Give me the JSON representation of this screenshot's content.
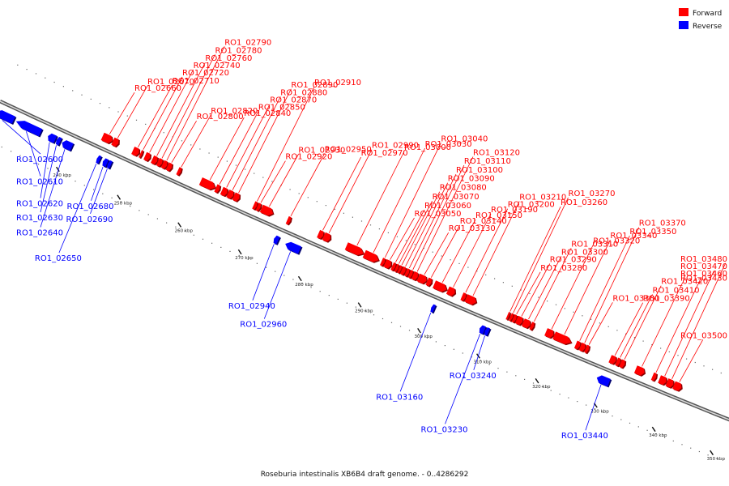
{
  "caption": "Roseburia intestinalis XB6B4 draft genome. - 0..4286292",
  "legend": {
    "forward": {
      "label": "Forward",
      "color": "#ff0000"
    },
    "reverse": {
      "label": "Reverse",
      "color": "#0000ff"
    }
  },
  "chart_data": {
    "type": "genome_map",
    "range_kbp": [
      228,
      352
    ],
    "ticks_kbp": [
      240,
      250,
      260,
      270,
      280,
      290,
      300,
      310,
      320,
      330,
      340,
      350
    ],
    "tick_label_suffix": " kbp",
    "genes": [
      {
        "name": "RO1_02600",
        "strand": "reverse",
        "start": 228.0,
        "end": 231.0
      },
      {
        "name": "RO1_02610",
        "strand": "reverse",
        "start": 231.4,
        "end": 235.4
      },
      {
        "name": "RO1_02620",
        "strand": "reverse",
        "start": 236.6,
        "end": 237.8
      },
      {
        "name": "RO1_02630",
        "strand": "reverse",
        "start": 238.0,
        "end": 238.6
      },
      {
        "name": "RO1_02640",
        "strand": "reverse",
        "start": 238.9,
        "end": 240.5
      },
      {
        "name": "RO1_02650",
        "strand": "reverse",
        "start": 244.6,
        "end": 245.1
      },
      {
        "name": "RO1_02660",
        "strand": "forward",
        "start": 244.0,
        "end": 245.6
      },
      {
        "name": "RO1_02670",
        "strand": "forward",
        "start": 245.7,
        "end": 246.6
      },
      {
        "name": "RO1_02680",
        "strand": "reverse",
        "start": 245.6,
        "end": 246.3
      },
      {
        "name": "RO1_02690",
        "strand": "reverse",
        "start": 246.4,
        "end": 246.9
      },
      {
        "name": "RO1_02710",
        "strand": "forward",
        "start": 249.0,
        "end": 250.0
      },
      {
        "name": "RO1_02720",
        "strand": "forward",
        "start": 250.2,
        "end": 250.5
      },
      {
        "name": "RO1_02740",
        "strand": "forward",
        "start": 251.0,
        "end": 251.8
      },
      {
        "name": "RO1_02760",
        "strand": "forward",
        "start": 252.2,
        "end": 253.0
      },
      {
        "name": "RO1_02780",
        "strand": "forward",
        "start": 253.1,
        "end": 253.8
      },
      {
        "name": "RO1_02790",
        "strand": "forward",
        "start": 253.9,
        "end": 254.6
      },
      {
        "name": "RO1_02800",
        "strand": "forward",
        "start": 254.7,
        "end": 255.4
      },
      {
        "name": "RO1_02820",
        "strand": "forward",
        "start": 256.4,
        "end": 256.9
      },
      {
        "name": "RO1_02840",
        "strand": "forward",
        "start": 260.2,
        "end": 262.6
      },
      {
        "name": "RO1_02850",
        "strand": "forward",
        "start": 262.7,
        "end": 263.3
      },
      {
        "name": "RO1_02870",
        "strand": "forward",
        "start": 263.7,
        "end": 264.6
      },
      {
        "name": "RO1_02880",
        "strand": "forward",
        "start": 264.7,
        "end": 265.6
      },
      {
        "name": "RO1_02890",
        "strand": "forward",
        "start": 265.7,
        "end": 266.6
      },
      {
        "name": "RO1_02910",
        "strand": "forward",
        "start": 269.0,
        "end": 269.5
      },
      {
        "name": "RO1_02920",
        "strand": "forward",
        "start": 269.6,
        "end": 270.1
      },
      {
        "name": "RO1_02930",
        "strand": "forward",
        "start": 270.3,
        "end": 272.2
      },
      {
        "name": "RO1_02940",
        "strand": "reverse",
        "start": 273.9,
        "end": 274.6
      },
      {
        "name": "RO1_02950",
        "strand": "forward",
        "start": 274.6,
        "end": 275.1
      },
      {
        "name": "RO1_02960",
        "strand": "reverse",
        "start": 275.8,
        "end": 278.2
      },
      {
        "name": "RO1_02970",
        "strand": "forward",
        "start": 279.8,
        "end": 280.6
      },
      {
        "name": "RO1_02990",
        "strand": "forward",
        "start": 280.7,
        "end": 281.8
      },
      {
        "name": "RO1_03000",
        "strand": "forward",
        "start": 284.5,
        "end": 287.4
      },
      {
        "name": "RO1_03030",
        "strand": "forward",
        "start": 287.5,
        "end": 289.9
      },
      {
        "name": "RO1_03040",
        "strand": "forward",
        "start": 290.4,
        "end": 290.9
      },
      {
        "name": "RO1_03050",
        "strand": "forward",
        "start": 291.0,
        "end": 292.0
      },
      {
        "name": "RO1_03060",
        "strand": "forward",
        "start": 292.2,
        "end": 292.7
      },
      {
        "name": "RO1_03070",
        "strand": "forward",
        "start": 292.8,
        "end": 293.2
      },
      {
        "name": "RO1_03080",
        "strand": "forward",
        "start": 293.3,
        "end": 293.7
      },
      {
        "name": "RO1_03090",
        "strand": "forward",
        "start": 293.8,
        "end": 294.4
      },
      {
        "name": "RO1_03100",
        "strand": "forward",
        "start": 294.5,
        "end": 295.0
      },
      {
        "name": "RO1_03110",
        "strand": "forward",
        "start": 295.1,
        "end": 295.6
      },
      {
        "name": "RO1_03120",
        "strand": "forward",
        "start": 295.7,
        "end": 296.5
      },
      {
        "name": "RO1_03130",
        "strand": "forward",
        "start": 296.6,
        "end": 298.0
      },
      {
        "name": "RO1_03140",
        "strand": "forward",
        "start": 298.1,
        "end": 298.8
      },
      {
        "name": "RO1_03150",
        "strand": "forward",
        "start": 299.3,
        "end": 301.4
      },
      {
        "name": "RO1_03160",
        "strand": "reverse",
        "start": 300.3,
        "end": 300.8
      },
      {
        "name": "RO1_03190",
        "strand": "forward",
        "start": 301.6,
        "end": 302.8
      },
      {
        "name": "RO1_03200",
        "strand": "forward",
        "start": 304.0,
        "end": 304.6
      },
      {
        "name": "RO1_03210",
        "strand": "forward",
        "start": 304.7,
        "end": 306.4
      },
      {
        "name": "RO1_03230",
        "strand": "reverse",
        "start": 308.5,
        "end": 309.3
      },
      {
        "name": "RO1_03240",
        "strand": "reverse",
        "start": 309.4,
        "end": 310.0
      },
      {
        "name": "RO1_03260",
        "strand": "forward",
        "start": 311.7,
        "end": 312.0
      },
      {
        "name": "RO1_03270",
        "strand": "forward",
        "start": 312.2,
        "end": 312.6
      },
      {
        "name": "RO1_03280",
        "strand": "forward",
        "start": 312.7,
        "end": 313.2
      },
      {
        "name": "RO1_03290",
        "strand": "forward",
        "start": 313.3,
        "end": 314.3
      },
      {
        "name": "RO1_03300",
        "strand": "forward",
        "start": 314.4,
        "end": 315.6
      },
      {
        "name": "RO1_03310",
        "strand": "forward",
        "start": 315.7,
        "end": 316.2
      },
      {
        "name": "RO1_03320",
        "strand": "forward",
        "start": 318.3,
        "end": 319.6
      },
      {
        "name": "RO1_03340",
        "strand": "forward",
        "start": 319.7,
        "end": 322.6
      },
      {
        "name": "RO1_03350",
        "strand": "forward",
        "start": 323.4,
        "end": 324.1
      },
      {
        "name": "RO1_03370",
        "strand": "forward",
        "start": 324.2,
        "end": 325.0
      },
      {
        "name": "RO1_03380",
        "strand": "forward",
        "start": 325.1,
        "end": 325.6
      },
      {
        "name": "RO1_03390",
        "strand": "forward",
        "start": 329.3,
        "end": 330.3
      },
      {
        "name": "RO1_03410",
        "strand": "forward",
        "start": 330.4,
        "end": 331.0
      },
      {
        "name": "RO1_03420",
        "strand": "forward",
        "start": 331.1,
        "end": 331.8
      },
      {
        "name": "RO1_03430",
        "strand": "forward",
        "start": 333.7,
        "end": 335.2
      },
      {
        "name": "RO1_03440",
        "strand": "reverse",
        "start": 328.5,
        "end": 330.6
      },
      {
        "name": "RO1_03460",
        "strand": "forward",
        "start": 336.6,
        "end": 337.2
      },
      {
        "name": "RO1_03470",
        "strand": "forward",
        "start": 337.8,
        "end": 339.0
      },
      {
        "name": "RO1_03480",
        "strand": "forward",
        "start": 339.1,
        "end": 340.2
      },
      {
        "name": "RO1_03500",
        "strand": "forward",
        "start": 340.3,
        "end": 341.6
      }
    ]
  }
}
